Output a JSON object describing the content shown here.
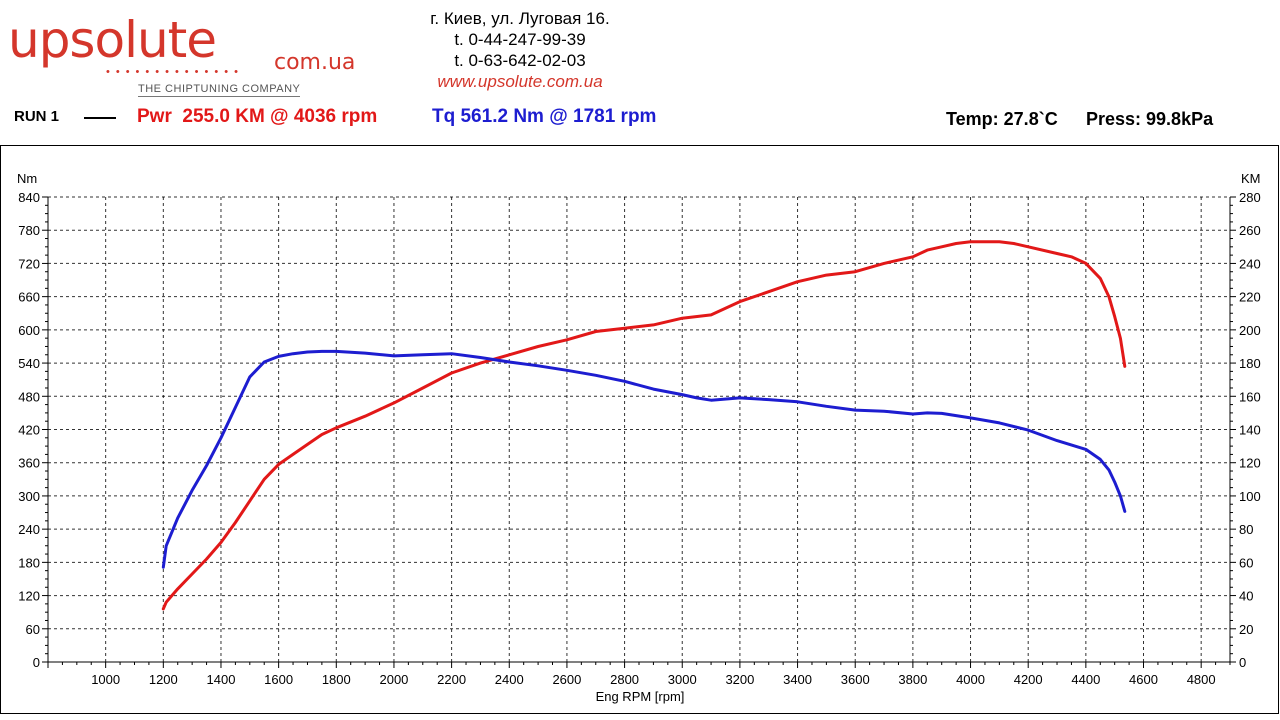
{
  "header": {
    "logo_main": "upsolute",
    "logo_tld": "com.ua",
    "logo_dots": "••••••••••••••",
    "logo_tagline": "THE CHIPTUNING COMPANY",
    "address": "г. Киев, ул. Луговая 16.",
    "phone1": "t. 0-44-247-99-39",
    "phone2": "t. 0-63-642-02-03",
    "website": "www.upsolute.com.ua"
  },
  "run": {
    "label": "RUN 1",
    "power_summary": "Pwr  255.0 KM @ 4036 rpm",
    "torque_summary": "Tq 561.2 Nm @ 1781 rpm",
    "temp": "Temp: 27.8`C",
    "pressure": "Press: 99.8kPa"
  },
  "colors": {
    "power": "#e21818",
    "torque": "#1d1dd0",
    "grid": "#000000",
    "brand": "#d4362b"
  },
  "chart_data": {
    "type": "line",
    "xlabel": "Eng RPM [rpm]",
    "ylabel_left": "Nm",
    "ylabel_right": "KM",
    "xlim": [
      800,
      4900
    ],
    "ylim_left": [
      0,
      840
    ],
    "ylim_right": [
      0,
      280
    ],
    "x_ticks": [
      1000,
      1200,
      1400,
      1600,
      1800,
      2000,
      2200,
      2400,
      2600,
      2800,
      3000,
      3200,
      3400,
      3600,
      3800,
      4000,
      4200,
      4400,
      4600,
      4800
    ],
    "y_ticks_left": [
      0,
      60,
      120,
      180,
      240,
      300,
      360,
      420,
      480,
      540,
      600,
      660,
      720,
      780,
      840
    ],
    "y_ticks_right": [
      0,
      20,
      40,
      60,
      80,
      100,
      120,
      140,
      160,
      180,
      200,
      220,
      240,
      260,
      280
    ],
    "grid": true,
    "series": [
      {
        "axis": "right",
        "color": "#e21818",
        "x": [
          1200,
          1210,
          1250,
          1300,
          1350,
          1400,
          1450,
          1500,
          1550,
          1600,
          1650,
          1700,
          1750,
          1800,
          1900,
          2000,
          2100,
          2200,
          2300,
          2400,
          2500,
          2600,
          2700,
          2800,
          2900,
          3000,
          3100,
          3150,
          3200,
          3300,
          3400,
          3500,
          3600,
          3700,
          3800,
          3850,
          3900,
          3950,
          4000,
          4100,
          4150,
          4200,
          4300,
          4350,
          4400,
          4450,
          4480,
          4500,
          4520,
          4535
        ],
        "y": [
          32,
          36,
          44,
          53,
          62,
          72,
          84,
          97,
          110,
          119,
          125,
          131,
          137,
          141,
          148,
          156,
          165,
          174,
          180,
          185,
          190,
          194,
          199,
          201,
          203,
          207,
          209,
          213,
          217,
          223,
          229,
          233,
          235,
          240,
          244,
          248,
          250,
          252,
          253,
          253,
          252,
          250,
          246,
          244,
          240,
          231,
          220,
          208,
          195,
          178
        ]
      },
      {
        "axis": "left",
        "color": "#1d1dd0",
        "x": [
          1200,
          1210,
          1250,
          1300,
          1350,
          1400,
          1450,
          1500,
          1550,
          1600,
          1650,
          1700,
          1750,
          1800,
          1900,
          2000,
          2100,
          2200,
          2300,
          2400,
          2500,
          2600,
          2700,
          2800,
          2900,
          3000,
          3050,
          3100,
          3200,
          3300,
          3400,
          3500,
          3600,
          3700,
          3800,
          3850,
          3900,
          4000,
          4100,
          4200,
          4300,
          4400,
          4450,
          4480,
          4500,
          4520,
          4535
        ],
        "y": [
          171,
          210,
          260,
          310,
          355,
          405,
          460,
          515,
          542,
          552,
          557,
          560,
          561,
          561,
          558,
          553,
          555,
          557,
          550,
          542,
          535,
          527,
          518,
          507,
          493,
          483,
          477,
          473,
          477,
          474,
          470,
          462,
          455,
          453,
          448,
          450,
          449,
          441,
          432,
          419,
          400,
          384,
          366,
          347,
          325,
          300,
          272
        ]
      }
    ]
  }
}
